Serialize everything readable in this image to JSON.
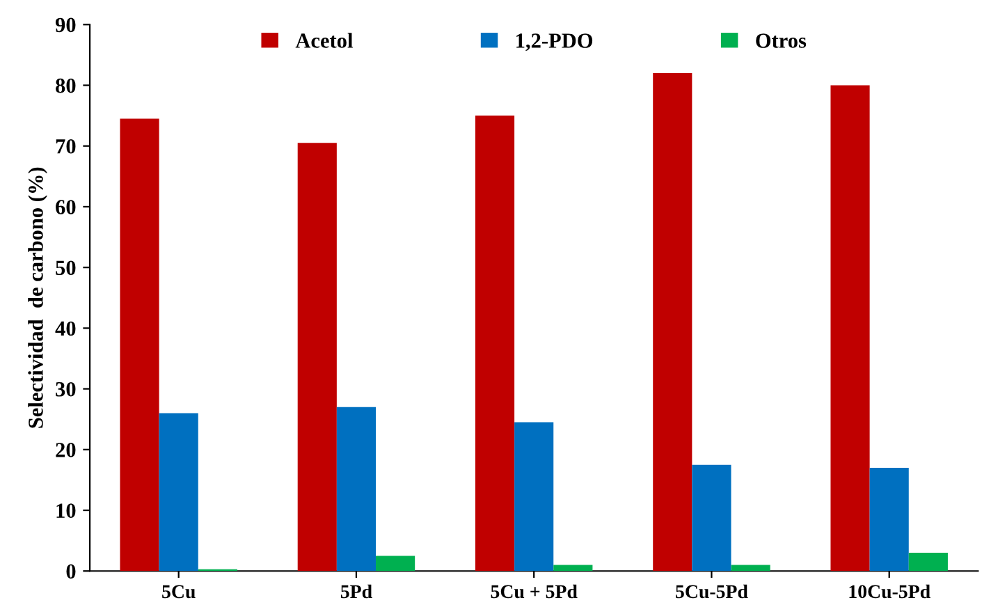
{
  "chart_data": {
    "type": "bar",
    "ylabel": "Selectividad  de carbono (%)",
    "categories": [
      "5Cu",
      "5Pd",
      "5Cu + 5Pd",
      "5Cu-5Pd",
      "10Cu-5Pd"
    ],
    "series": [
      {
        "name": "Acetol",
        "color": "#c00000",
        "values": [
          74.5,
          70.5,
          75,
          82,
          80
        ]
      },
      {
        "name": "1,2-PDO",
        "color": "#0070c0",
        "values": [
          26,
          27,
          24.5,
          17.5,
          17
        ]
      },
      {
        "name": "Otros",
        "color": "#00b050",
        "values": [
          0.3,
          2.5,
          1,
          1,
          3
        ]
      }
    ],
    "ylim": [
      0,
      90
    ],
    "yticks": [
      0,
      10,
      20,
      30,
      40,
      50,
      60,
      70,
      80,
      90
    ],
    "grid": false,
    "legend": "top"
  }
}
